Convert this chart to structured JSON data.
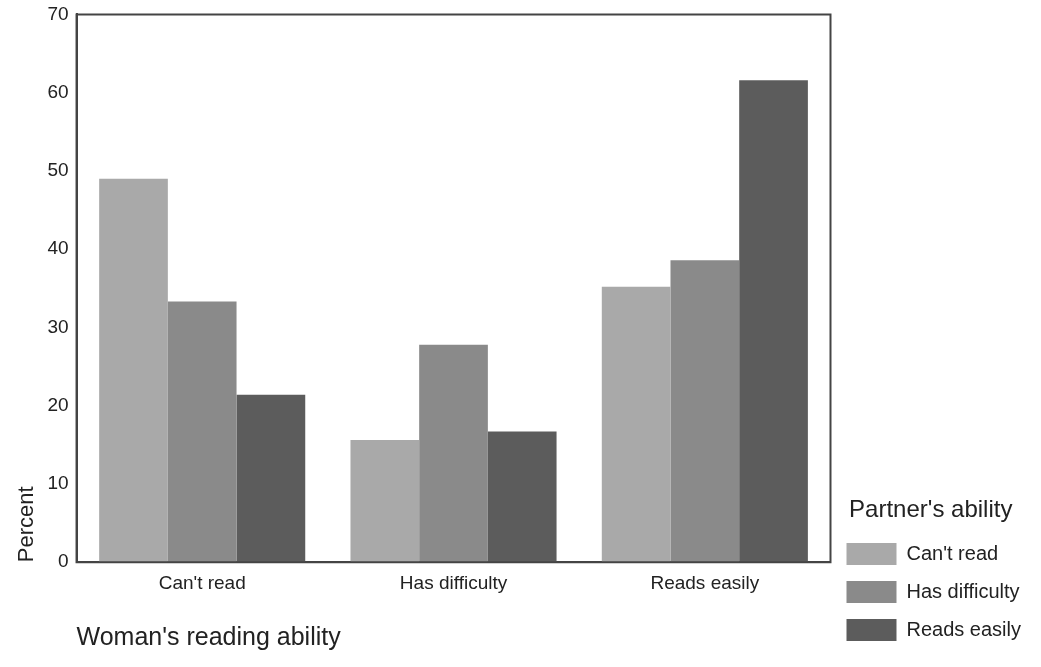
{
  "chart_data": {
    "type": "bar",
    "xlabel": "Woman's reading ability",
    "ylabel": "Percent",
    "legend_title": "Partner's ability",
    "categories": [
      "Can't read",
      "Has difficulty",
      "Reads easily"
    ],
    "series": [
      {
        "name": "Can't read",
        "color": "#a9a9a9",
        "values": [
          49.0,
          15.6,
          35.2
        ]
      },
      {
        "name": "Has difficulty",
        "color": "#8a8a8a",
        "values": [
          33.3,
          27.8,
          38.6
        ]
      },
      {
        "name": "Reads easily",
        "color": "#5c5c5c",
        "values": [
          21.4,
          16.7,
          61.6
        ]
      }
    ],
    "ylim": [
      0,
      70
    ],
    "yticks": [
      0,
      10,
      20,
      30,
      40,
      50,
      60,
      70
    ],
    "grid": false,
    "legend": "right"
  }
}
